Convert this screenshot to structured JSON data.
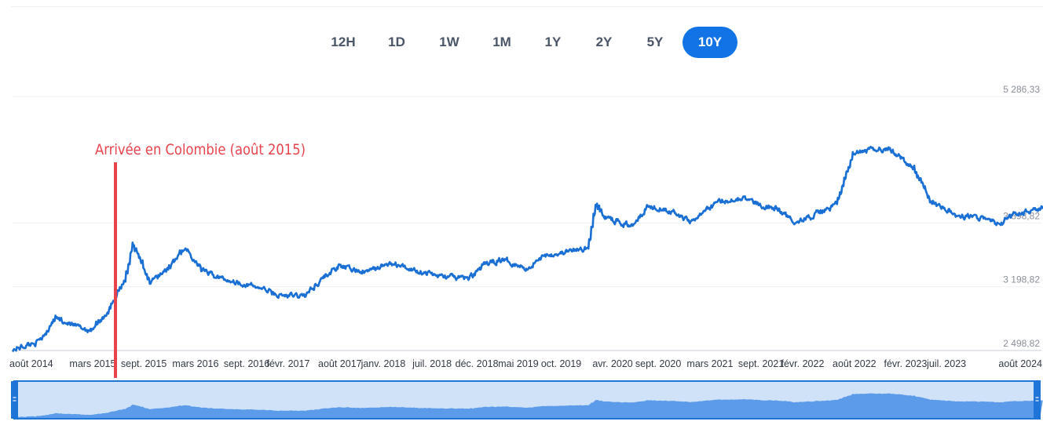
{
  "range_selector": {
    "options": [
      "12H",
      "1D",
      "1W",
      "1M",
      "1Y",
      "2Y",
      "5Y",
      "10Y"
    ],
    "selected": "10Y",
    "accent_color": "#1273e6"
  },
  "chart_data": {
    "type": "line",
    "title": "",
    "xlabel": "",
    "ylabel": "",
    "y_ticks": [
      {
        "value": 5286.33,
        "label": "5 286,33"
      },
      {
        "value": 3898.82,
        "label": "3 898,82"
      },
      {
        "value": 3198.82,
        "label": "3 198,82"
      },
      {
        "value": 2498.82,
        "label": "2 498,82"
      }
    ],
    "ylim": [
      2498.82,
      5286.33
    ],
    "x_range": [
      "2014-08",
      "2024-08"
    ],
    "x_ticks": [
      {
        "date": "2014-08",
        "label": "août 2014"
      },
      {
        "date": "2015-03",
        "label": "mars 2015"
      },
      {
        "date": "2015-09",
        "label": "sept. 2015"
      },
      {
        "date": "2016-03",
        "label": "mars 2016"
      },
      {
        "date": "2016-09",
        "label": "sept. 2016"
      },
      {
        "date": "2017-02",
        "label": "févr. 2017"
      },
      {
        "date": "2017-08",
        "label": "août 2017"
      },
      {
        "date": "2018-01",
        "label": "janv. 2018"
      },
      {
        "date": "2018-07",
        "label": "juil. 2018"
      },
      {
        "date": "2018-12",
        "label": "déc. 2018"
      },
      {
        "date": "2019-05",
        "label": "mai 2019"
      },
      {
        "date": "2019-10",
        "label": "oct. 2019"
      },
      {
        "date": "2020-04",
        "label": "avr. 2020"
      },
      {
        "date": "2020-09",
        "label": "sept. 2020"
      },
      {
        "date": "2021-03",
        "label": "mars 2021"
      },
      {
        "date": "2021-09",
        "label": "sept. 2021"
      },
      {
        "date": "2022-02",
        "label": "févr. 2022"
      },
      {
        "date": "2022-08",
        "label": "août 2022"
      },
      {
        "date": "2023-02",
        "label": "févr. 2023"
      },
      {
        "date": "2023-07",
        "label": "juil. 2023"
      },
      {
        "date": "2024-08",
        "label": "août 2024"
      }
    ],
    "series": [
      {
        "color": "#1a6fd4",
        "points": [
          [
            "2014-08",
            2510
          ],
          [
            "2014-11",
            2600
          ],
          [
            "2015-01",
            2860
          ],
          [
            "2015-03",
            2770
          ],
          [
            "2015-05",
            2720
          ],
          [
            "2015-07",
            2920
          ],
          [
            "2015-09",
            3280
          ],
          [
            "2015-10",
            3650
          ],
          [
            "2015-12",
            3250
          ],
          [
            "2016-02",
            3400
          ],
          [
            "2016-04",
            3620
          ],
          [
            "2016-06",
            3380
          ],
          [
            "2016-08",
            3300
          ],
          [
            "2016-10",
            3250
          ],
          [
            "2017-01",
            3180
          ],
          [
            "2017-03",
            3100
          ],
          [
            "2017-06",
            3100
          ],
          [
            "2017-08",
            3290
          ],
          [
            "2017-10",
            3420
          ],
          [
            "2018-01",
            3360
          ],
          [
            "2018-04",
            3450
          ],
          [
            "2018-07",
            3380
          ],
          [
            "2018-10",
            3310
          ],
          [
            "2019-01",
            3290
          ],
          [
            "2019-03",
            3440
          ],
          [
            "2019-05",
            3500
          ],
          [
            "2019-08",
            3400
          ],
          [
            "2019-10",
            3550
          ],
          [
            "2019-12",
            3570
          ],
          [
            "2020-03",
            3620
          ],
          [
            "2020-04",
            4100
          ],
          [
            "2020-05",
            3960
          ],
          [
            "2020-08",
            3870
          ],
          [
            "2020-10",
            4080
          ],
          [
            "2020-12",
            4060
          ],
          [
            "2021-03",
            3920
          ],
          [
            "2021-06",
            4120
          ],
          [
            "2021-09",
            4180
          ],
          [
            "2021-11",
            4100
          ],
          [
            "2022-01",
            4060
          ],
          [
            "2022-03",
            3920
          ],
          [
            "2022-05",
            3960
          ],
          [
            "2022-08",
            4100
          ],
          [
            "2022-10",
            4650
          ],
          [
            "2022-12",
            4700
          ],
          [
            "2023-02",
            4720
          ],
          [
            "2023-05",
            4500
          ],
          [
            "2023-07",
            4150
          ],
          [
            "2023-10",
            3980
          ],
          [
            "2024-01",
            3950
          ],
          [
            "2024-03",
            3880
          ],
          [
            "2024-05",
            4000
          ],
          [
            "2024-08",
            4060
          ]
        ]
      }
    ],
    "annotations": [
      {
        "text": "Arrivée en Colombie (août 2015)",
        "date": "2015-08",
        "color": "#e8434c"
      }
    ]
  },
  "navigator": {
    "fill_color": "#5b9be9",
    "window_color": "#cfe2f7"
  }
}
